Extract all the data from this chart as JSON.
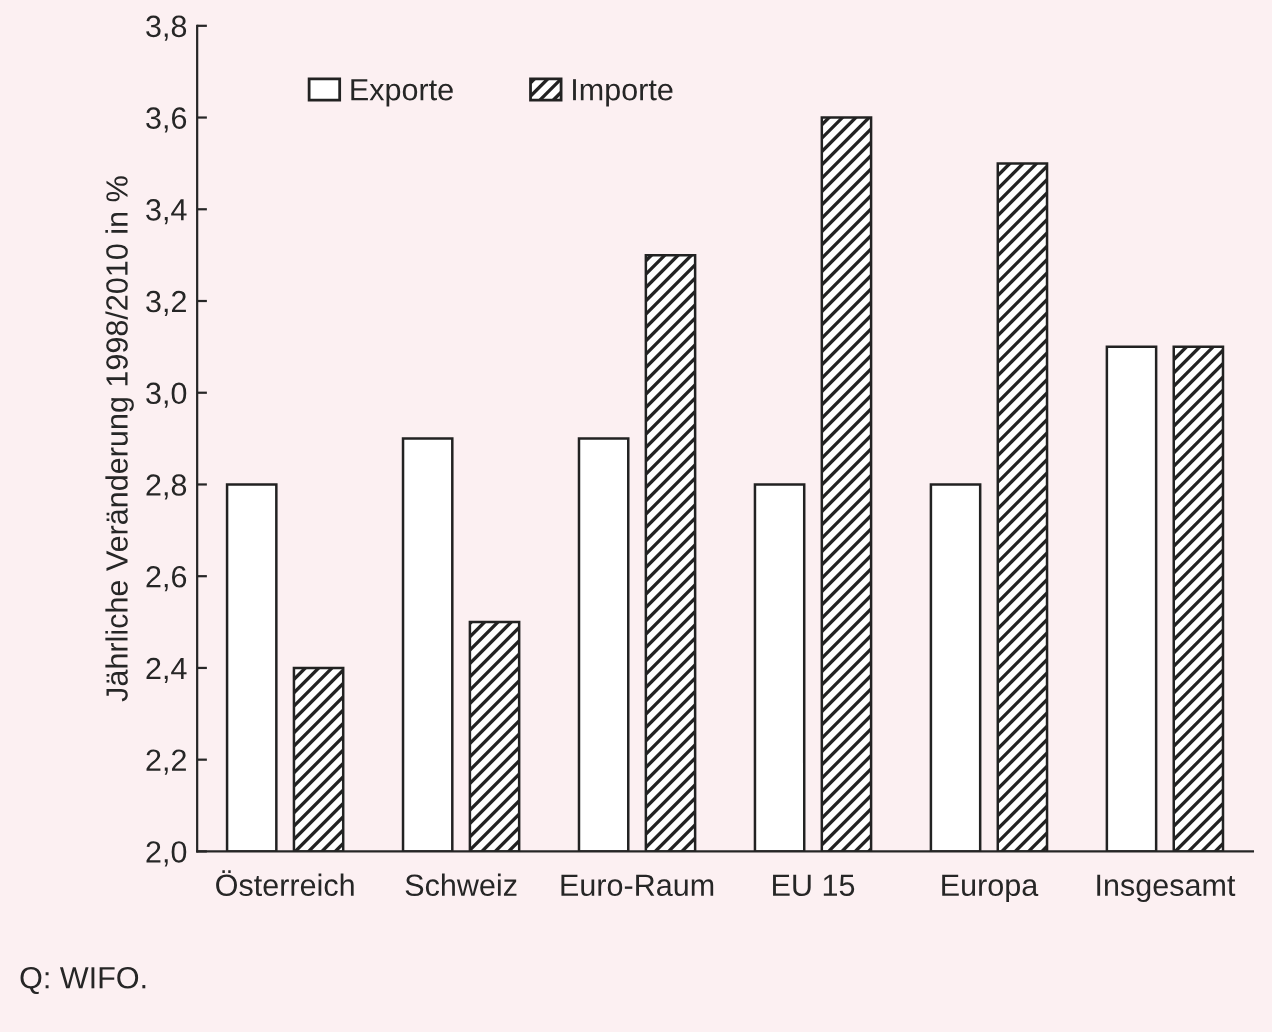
{
  "chart_data": {
    "type": "bar",
    "ylabel": "Jährliche Veränderung 1998/2010 in %",
    "categories": [
      "Österreich",
      "Schweiz",
      "Euro-Raum",
      "EU 15",
      "Europa",
      "Insgesamt"
    ],
    "series": [
      {
        "name": "Exporte",
        "color": "#ffffff",
        "values": [
          2.8,
          2.9,
          2.9,
          2.8,
          2.8,
          3.1
        ]
      },
      {
        "name": "Importe",
        "color": "#222222",
        "values": [
          2.4,
          2.5,
          3.3,
          3.6,
          3.5,
          3.1
        ]
      }
    ],
    "ylim": [
      2.0,
      3.8
    ],
    "yticks": [
      {
        "value": 2.0,
        "label": "2,0"
      },
      {
        "value": 2.2,
        "label": "2,2"
      },
      {
        "value": 2.4,
        "label": "2,4"
      },
      {
        "value": 2.6,
        "label": "2,6"
      },
      {
        "value": 2.8,
        "label": "2,8"
      },
      {
        "value": 3.0,
        "label": "3,0"
      },
      {
        "value": 3.2,
        "label": "3,2"
      },
      {
        "value": 3.4,
        "label": "3,4"
      },
      {
        "value": 3.6,
        "label": "3,6"
      },
      {
        "value": 3.8,
        "label": "3,8"
      }
    ],
    "grid": false,
    "legend": "top left",
    "annotations": [
      "Q: WIFO."
    ]
  }
}
